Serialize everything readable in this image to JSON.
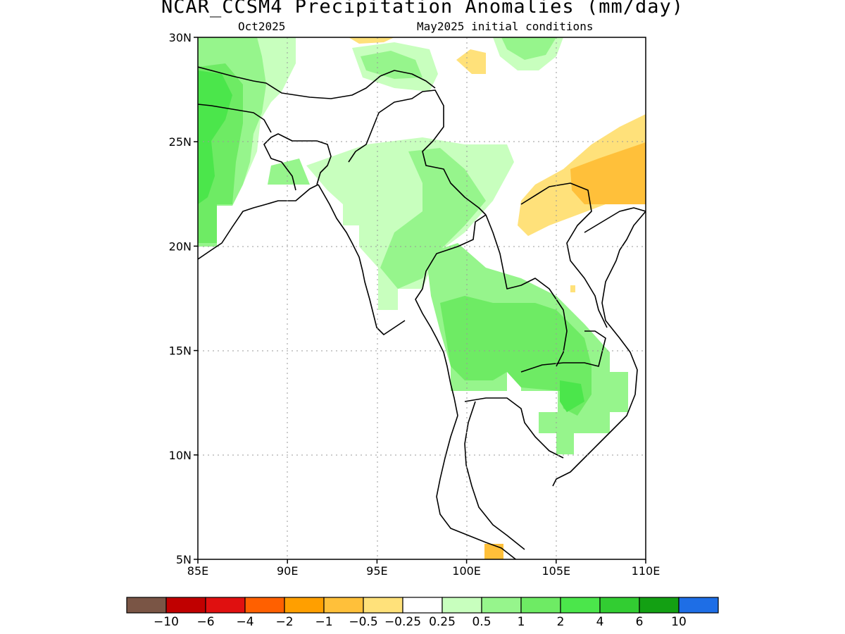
{
  "title": "NCAR_CCSM4 Precipitation Anomalies (mm/day)",
  "subtitle_left": "Oct2025",
  "subtitle_right": "May2025 initial conditions",
  "map": {
    "lon_range": [
      85,
      110
    ],
    "lat_range": [
      5,
      30
    ],
    "lon_ticks": [
      "85E",
      "90E",
      "95E",
      "100E",
      "105E",
      "110E"
    ],
    "lat_ticks": [
      "30N",
      "25N",
      "20N",
      "15N",
      "10N",
      "5N"
    ],
    "grid": "dotted"
  },
  "colorbar": {
    "colors": [
      "#7a5545",
      "#c00000",
      "#e01010",
      "#ff6000",
      "#ff9f00",
      "#ffc03a",
      "#ffe17a",
      "#ffffff",
      "#c8ffbe",
      "#96f58c",
      "#6eeb64",
      "#4be64b",
      "#32cd32",
      "#13a013",
      "#1e6ee6"
    ],
    "labels": [
      "-10",
      "-6",
      "-4",
      "-2",
      "-1",
      "-0.5",
      "-0.25",
      "0.25",
      "0.5",
      "1",
      "2",
      "4",
      "6",
      "10"
    ]
  }
}
